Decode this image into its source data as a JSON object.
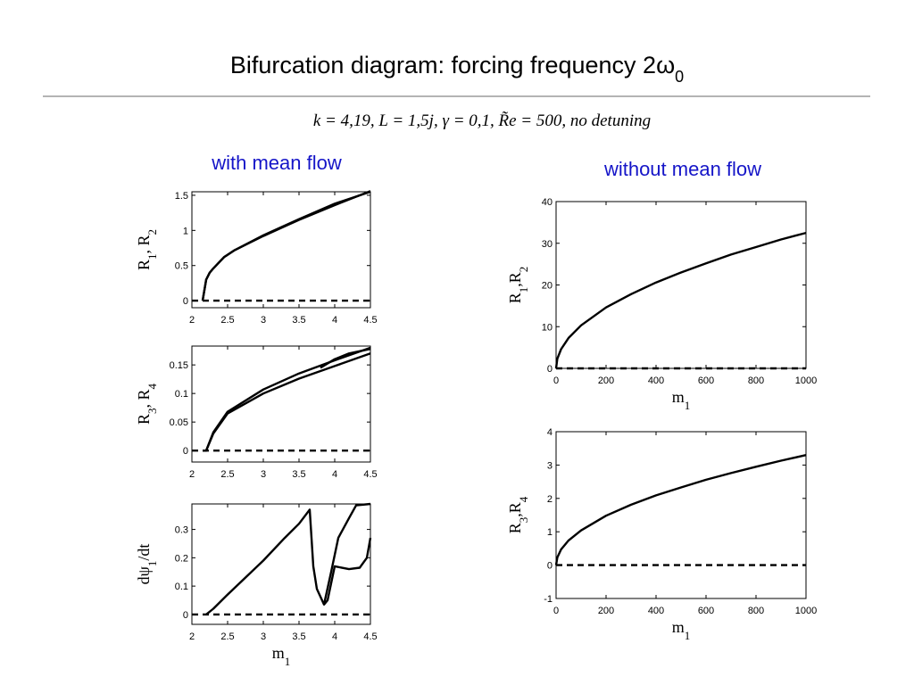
{
  "title_parts": [
    "Bifurcation diagram: forcing frequency 2ω",
    "0"
  ],
  "subtitle": "k = 4,19,    L = 1,5j,    γ = 0,1,    R̃e = 500,    no detuning",
  "left_heading": "with mean flow",
  "right_heading": "without mean flow",
  "chart_data": [
    {
      "type": "line",
      "ylabel_parts": [
        "R",
        "1",
        ", R",
        "2"
      ],
      "xlim": [
        2,
        4.5
      ],
      "xticks": [
        2,
        2.5,
        3,
        3.5,
        4,
        4.5
      ],
      "ylim": [
        -0.1,
        1.55
      ],
      "yticks": [
        0,
        0.5,
        1,
        1.5
      ],
      "series": [
        {
          "color": "#000000",
          "dash": false,
          "x": [
            2.15,
            2.2,
            2.25,
            2.3,
            2.45,
            2.6,
            3,
            3.5,
            4,
            4.5
          ],
          "values": [
            0,
            0.3,
            0.4,
            0.46,
            0.62,
            0.72,
            0.92,
            1.15,
            1.36,
            1.56
          ]
        },
        {
          "color": "#000000",
          "dash": false,
          "x": [
            2.15,
            2.2,
            2.25,
            2.3,
            2.45,
            2.6,
            3,
            3.5,
            4,
            4.5
          ],
          "values": [
            0,
            0.3,
            0.4,
            0.46,
            0.62,
            0.72,
            0.93,
            1.16,
            1.38,
            1.55
          ]
        },
        {
          "color": "#000000",
          "dash": true,
          "x": [
            2,
            4.5
          ],
          "values": [
            0,
            0
          ]
        }
      ]
    },
    {
      "type": "line",
      "ylabel_parts": [
        "R",
        "3",
        ", R",
        "4"
      ],
      "xlim": [
        2,
        4.5
      ],
      "xticks": [
        2,
        2.5,
        3,
        3.5,
        4,
        4.5
      ],
      "ylim": [
        -0.02,
        0.183
      ],
      "yticks": [
        0,
        0.05,
        0.1,
        0.15
      ],
      "series": [
        {
          "color": "#000000",
          "dash": false,
          "x": [
            2.15,
            2.2,
            2.3,
            2.5,
            3,
            3.5,
            4,
            4.5
          ],
          "values": [
            0,
            0,
            0.03,
            0.065,
            0.1,
            0.126,
            0.148,
            0.17
          ]
        },
        {
          "color": "#000000",
          "dash": false,
          "x": [
            2.15,
            2.2,
            2.3,
            2.5,
            3,
            3.5,
            4,
            4.5
          ],
          "values": [
            0,
            0,
            0.032,
            0.068,
            0.107,
            0.135,
            0.158,
            0.18
          ]
        },
        {
          "color": "#000000",
          "dash": false,
          "x": [
            3.8,
            4,
            4.2,
            4.5
          ],
          "values": [
            0.145,
            0.16,
            0.17,
            0.178
          ]
        },
        {
          "color": "#000000",
          "dash": true,
          "x": [
            2,
            4.5
          ],
          "values": [
            0,
            0
          ]
        }
      ]
    },
    {
      "type": "line",
      "ylabel_parts": [
        "dψ",
        "1",
        "/dt"
      ],
      "xlabel_parts": [
        "m",
        "1"
      ],
      "xlim": [
        2,
        4.5
      ],
      "xticks": [
        2,
        2.5,
        3,
        3.5,
        4,
        4.5
      ],
      "ylim": [
        -0.035,
        0.39
      ],
      "yticks": [
        0,
        0.1,
        0.2,
        0.3
      ],
      "series": [
        {
          "color": "#000000",
          "dash": false,
          "x": [
            2.2,
            2.3,
            2.5,
            3,
            3.3,
            3.5,
            3.65,
            3.7,
            3.75,
            3.85,
            3.9,
            4,
            4.2,
            4.35,
            4.45,
            4.5
          ],
          "values": [
            0,
            0.02,
            0.07,
            0.19,
            0.27,
            0.32,
            0.37,
            0.17,
            0.09,
            0.035,
            0.05,
            0.17,
            0.16,
            0.165,
            0.2,
            0.27
          ]
        },
        {
          "color": "#000000",
          "dash": false,
          "x": [
            3.85,
            3.95,
            4.05,
            4.2,
            4.3,
            4.5
          ],
          "values": [
            0.035,
            0.15,
            0.27,
            0.34,
            0.385,
            0.39
          ]
        },
        {
          "color": "#000000",
          "dash": true,
          "x": [
            2,
            4.5
          ],
          "values": [
            0,
            0
          ]
        }
      ]
    },
    {
      "type": "line",
      "ylabel_parts": [
        "R",
        "1",
        ",R",
        "2"
      ],
      "xlabel_parts": [
        "m",
        "1"
      ],
      "xlim": [
        0,
        1000
      ],
      "xticks": [
        0,
        200,
        400,
        600,
        800,
        1000
      ],
      "ylim": [
        0,
        40
      ],
      "yticks": [
        0,
        10,
        20,
        30,
        40
      ],
      "series": [
        {
          "color": "#000000",
          "dash": false,
          "x": [
            0,
            5,
            20,
            50,
            100,
            200,
            300,
            400,
            500,
            600,
            700,
            800,
            900,
            1000
          ],
          "values": [
            0,
            2.3,
            4.6,
            7.3,
            10.3,
            14.6,
            17.8,
            20.6,
            23,
            25.2,
            27.3,
            29.1,
            30.9,
            32.5
          ]
        },
        {
          "color": "#000000",
          "dash": true,
          "x": [
            0,
            1000
          ],
          "values": [
            0,
            0
          ]
        }
      ]
    },
    {
      "type": "line",
      "ylabel_parts": [
        "R",
        "3",
        ",R",
        "4"
      ],
      "xlabel_parts": [
        "m",
        "1"
      ],
      "xlim": [
        0,
        1000
      ],
      "xticks": [
        0,
        200,
        400,
        600,
        800,
        1000
      ],
      "ylim": [
        -1,
        4
      ],
      "yticks": [
        -1,
        0,
        1,
        2,
        3,
        4
      ],
      "series": [
        {
          "color": "#000000",
          "dash": false,
          "x": [
            0,
            5,
            20,
            50,
            100,
            200,
            300,
            400,
            500,
            600,
            700,
            800,
            900,
            1000
          ],
          "values": [
            0,
            0.23,
            0.47,
            0.74,
            1.04,
            1.48,
            1.81,
            2.09,
            2.33,
            2.56,
            2.76,
            2.95,
            3.13,
            3.3
          ]
        },
        {
          "color": "#000000",
          "dash": true,
          "x": [
            0,
            1000
          ],
          "values": [
            0,
            0
          ]
        }
      ]
    }
  ]
}
